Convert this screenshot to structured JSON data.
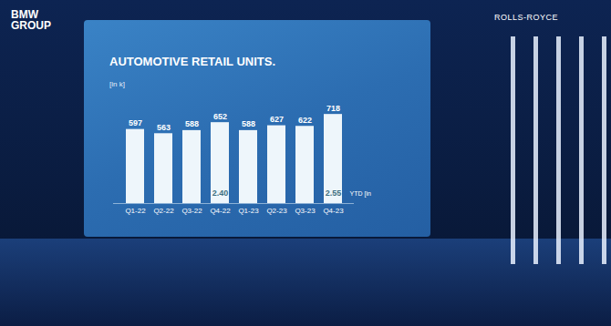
{
  "header": {
    "left": "BMW GROUP",
    "right": "ROLLS-ROYCE"
  },
  "chart_data": {
    "type": "bar",
    "title": "AUTOMOTIVE RETAIL UNITS.",
    "subtitle": "[in k]",
    "categories": [
      "Q1-22",
      "Q2-22",
      "Q3-22",
      "Q4-22",
      "Q1-23",
      "Q2-23",
      "Q3-23",
      "Q4-23"
    ],
    "values": [
      597,
      563,
      588,
      652,
      588,
      627,
      622,
      718
    ],
    "color": "#eef6fb",
    "ylim": [
      0,
      800
    ],
    "yticks": [],
    "grid": false,
    "data_labels": true,
    "tick_labels": "x",
    "annotations": [
      {
        "category": "Q4-22",
        "text": "2.40"
      },
      {
        "category": "Q4-23",
        "text": "2.55"
      }
    ],
    "ytd_note": "YTD [in"
  }
}
